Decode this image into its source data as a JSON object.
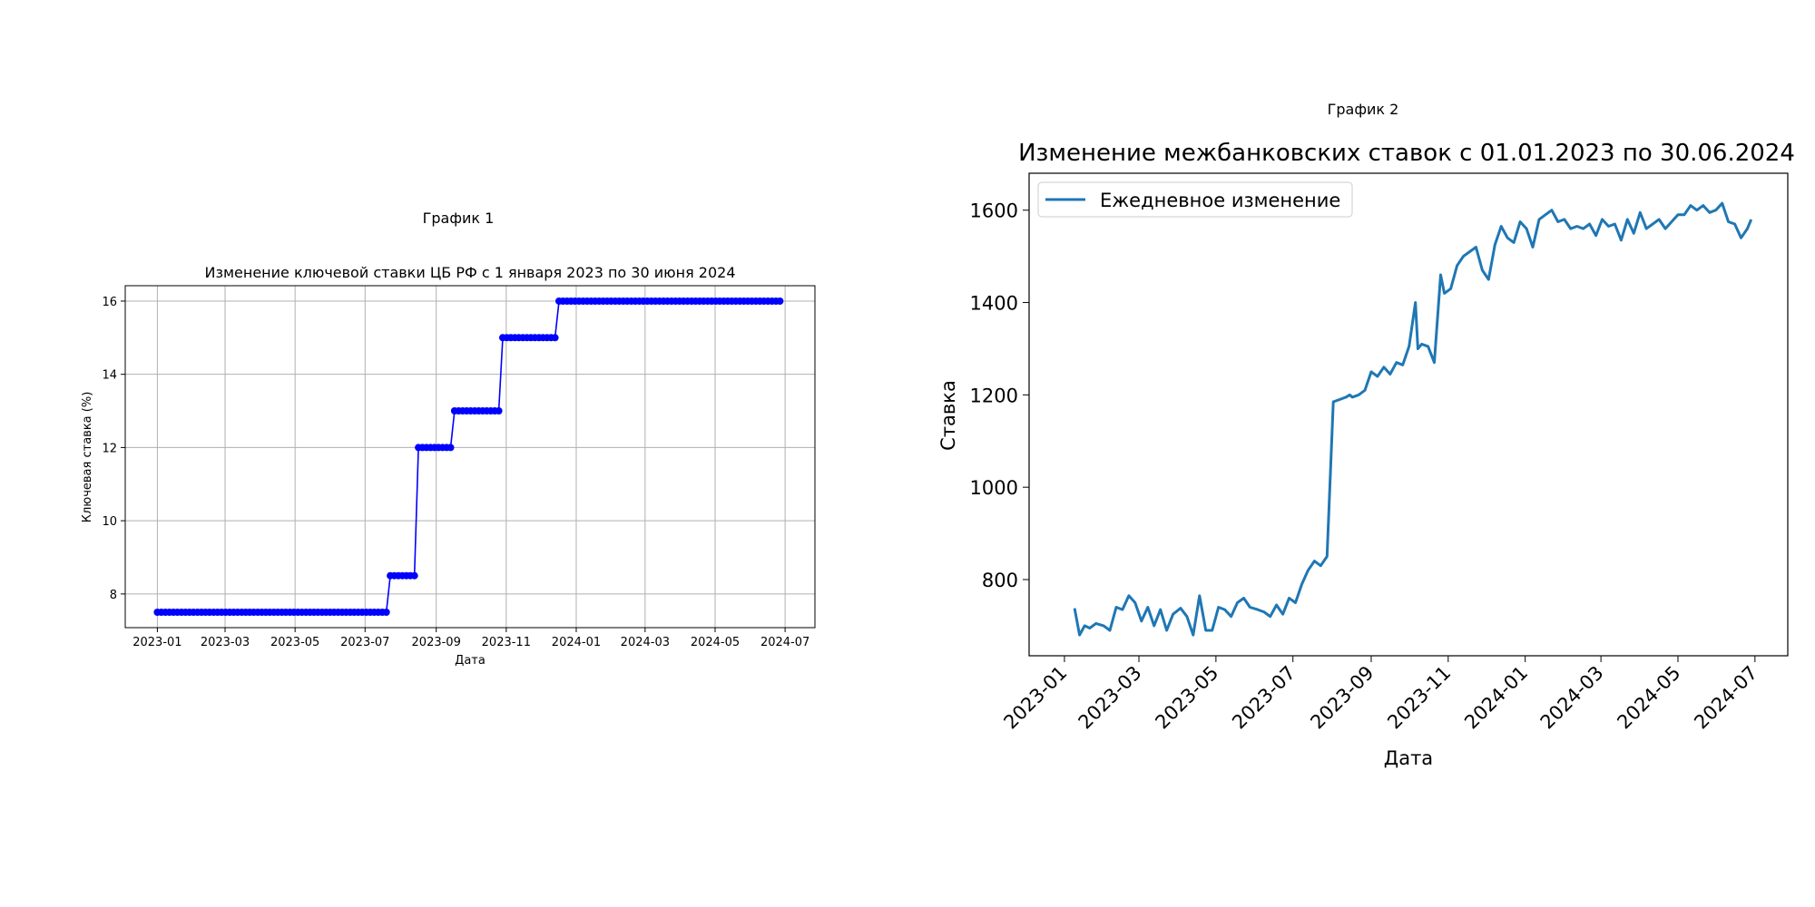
{
  "figure": {
    "caption_1": "График 1",
    "caption_2": "График 2"
  },
  "chart_data": [
    {
      "type": "line",
      "title": "Изменение ключевой ставки ЦБ РФ с 1 января 2023 по 30 июня 2024",
      "xlabel": "Дата",
      "ylabel": "Ключевая ставка (%)",
      "x_ticks": [
        "2023-01",
        "2023-03",
        "2023-05",
        "2023-07",
        "2023-09",
        "2023-11",
        "2024-01",
        "2024-03",
        "2024-05",
        "2024-07"
      ],
      "y_ticks": [
        8,
        10,
        12,
        14,
        16
      ],
      "xlim": [
        "2022-12-04",
        "2024-07-27"
      ],
      "ylim": [
        7.08,
        16.42
      ],
      "grid": true,
      "marker": "circle",
      "color": "#0000ff",
      "series": [
        {
          "x": [
            "2023-01-01",
            "2023-07-23",
            "2023-08-14",
            "2023-09-17",
            "2023-10-29",
            "2023-12-17",
            "2024-06-29"
          ],
          "values": [
            7.5,
            8.5,
            12,
            13,
            15,
            16,
            16
          ]
        }
      ],
      "sampling_days": 3.5
    },
    {
      "type": "line",
      "title": "Изменение межбанковских ставок с 01.01.2023 по 30.06.2024",
      "xlabel": "Дата",
      "ylabel": "Ставка",
      "x_ticks": [
        "2023-01",
        "2023-03",
        "2023-05",
        "2023-07",
        "2023-09",
        "2023-11",
        "2024-01",
        "2024-03",
        "2024-05",
        "2024-07"
      ],
      "y_ticks": [
        800,
        1000,
        1200,
        1400,
        1600
      ],
      "xlim": [
        "2022-12-04",
        "2024-07-27"
      ],
      "ylim": [
        635,
        1680
      ],
      "legend": "top-left",
      "grid": false,
      "color": "#1f77b4",
      "series": [
        {
          "name": "Ежедневное изменение",
          "x": [
            "2023-01-09",
            "2023-01-13",
            "2023-01-17",
            "2023-01-21",
            "2023-01-26",
            "2023-02-01",
            "2023-02-06",
            "2023-02-11",
            "2023-02-16",
            "2023-02-21",
            "2023-02-26",
            "2023-03-03",
            "2023-03-08",
            "2023-03-13",
            "2023-03-18",
            "2023-03-23",
            "2023-03-28",
            "2023-04-03",
            "2023-04-08",
            "2023-04-13",
            "2023-04-18",
            "2023-04-23",
            "2023-04-28",
            "2023-05-03",
            "2023-05-08",
            "2023-05-13",
            "2023-05-18",
            "2023-05-23",
            "2023-05-28",
            "2023-06-03",
            "2023-06-08",
            "2023-06-13",
            "2023-06-18",
            "2023-06-23",
            "2023-06-28",
            "2023-07-03",
            "2023-07-08",
            "2023-07-13",
            "2023-07-18",
            "2023-07-23",
            "2023-07-28",
            "2023-08-02",
            "2023-08-07",
            "2023-08-12",
            "2023-08-15",
            "2023-08-17",
            "2023-08-22",
            "2023-08-27",
            "2023-09-01",
            "2023-09-06",
            "2023-09-11",
            "2023-09-16",
            "2023-09-21",
            "2023-09-26",
            "2023-10-01",
            "2023-10-06",
            "2023-10-08",
            "2023-10-11",
            "2023-10-16",
            "2023-10-21",
            "2023-10-26",
            "2023-10-29",
            "2023-11-03",
            "2023-11-08",
            "2023-11-13",
            "2023-11-18",
            "2023-11-23",
            "2023-11-28",
            "2023-12-03",
            "2023-12-08",
            "2023-12-13",
            "2023-12-18",
            "2023-12-23",
            "2023-12-28",
            "2024-01-02",
            "2024-01-07",
            "2024-01-12",
            "2024-01-17",
            "2024-01-22",
            "2024-01-27",
            "2024-02-01",
            "2024-02-06",
            "2024-02-11",
            "2024-02-16",
            "2024-02-21",
            "2024-02-26",
            "2024-03-02",
            "2024-03-07",
            "2024-03-12",
            "2024-03-17",
            "2024-03-22",
            "2024-03-27",
            "2024-04-01",
            "2024-04-06",
            "2024-04-11",
            "2024-04-16",
            "2024-04-21",
            "2024-04-26",
            "2024-05-01",
            "2024-05-06",
            "2024-05-11",
            "2024-05-16",
            "2024-05-21",
            "2024-05-26",
            "2024-05-31",
            "2024-06-05",
            "2024-06-10",
            "2024-06-15",
            "2024-06-20",
            "2024-06-25",
            "2024-06-28"
          ],
          "values": [
            738,
            680,
            700,
            695,
            705,
            700,
            690,
            740,
            735,
            765,
            750,
            710,
            740,
            700,
            735,
            690,
            725,
            738,
            720,
            680,
            765,
            690,
            690,
            740,
            735,
            720,
            750,
            760,
            740,
            735,
            730,
            720,
            745,
            725,
            760,
            750,
            790,
            820,
            840,
            830,
            850,
            1185,
            1190,
            1195,
            1200,
            1195,
            1200,
            1210,
            1250,
            1240,
            1260,
            1245,
            1270,
            1265,
            1305,
            1400,
            1300,
            1310,
            1305,
            1270,
            1460,
            1420,
            1430,
            1480,
            1500,
            1510,
            1520,
            1470,
            1450,
            1525,
            1565,
            1540,
            1530,
            1575,
            1560,
            1520,
            1580,
            1590,
            1600,
            1575,
            1580,
            1560,
            1565,
            1560,
            1570,
            1545,
            1580,
            1565,
            1570,
            1535,
            1580,
            1550,
            1595,
            1560,
            1570,
            1580,
            1560,
            1575,
            1590,
            1590,
            1610,
            1600,
            1610,
            1595,
            1600,
            1615,
            1575,
            1570,
            1540,
            1560,
            1580
          ]
        }
      ]
    }
  ]
}
